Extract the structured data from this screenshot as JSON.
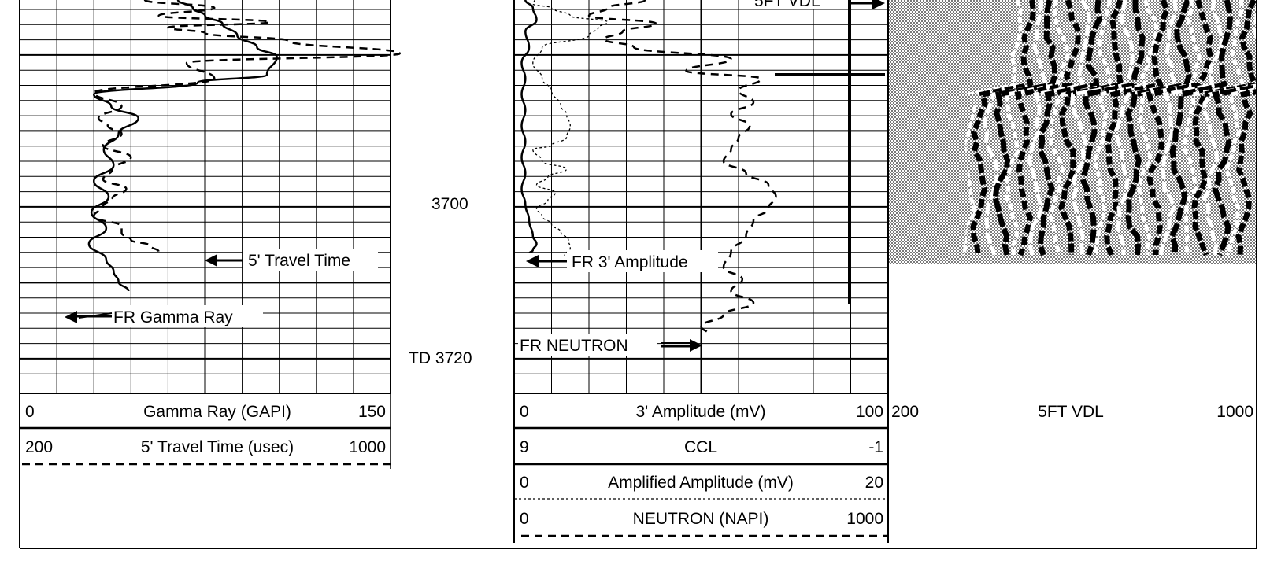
{
  "chart_data": {
    "type": "line",
    "title": "",
    "depth": {
      "label_3700": "3700",
      "label_td": "TD 3720",
      "td_value": 3720
    },
    "track1": {
      "headers": [
        {
          "left": "0",
          "name": "Gamma Ray (GAPI)",
          "right": "150",
          "line": "solid"
        },
        {
          "left": "200",
          "name": "5' Travel Time (usec)",
          "right": "1000",
          "line": "dashed"
        }
      ],
      "annotations": {
        "travel_time": "5' Travel Time",
        "gamma_ray": "FR Gamma Ray"
      },
      "series": [
        {
          "name": "Gamma Ray (GAPI)",
          "scale": [
            0,
            150
          ],
          "style": "solid",
          "x": [
            64,
            70,
            75,
            82,
            88,
            96,
            104,
            100,
            72,
            30,
            37,
            48,
            40,
            34,
            38,
            30,
            36,
            29,
            35,
            28,
            35,
            38,
            40,
            44
          ],
          "y": [
            0,
            10,
            20,
            30,
            45,
            60,
            72,
            95,
            105,
            120,
            135,
            150,
            170,
            190,
            210,
            230,
            250,
            270,
            290,
            310,
            330,
            345,
            358,
            370
          ]
        },
        {
          "name": "5' Travel Time (usec)",
          "scale": [
            200,
            1000
          ],
          "style": "dashed",
          "x": [
            470,
            620,
            500,
            740,
            520,
            600,
            780,
            1020,
            560,
            620,
            360,
            420,
            370,
            390,
            420,
            380,
            440,
            400,
            380,
            430,
            400,
            380,
            360,
            420,
            420,
            440,
            480,
            500
          ],
          "y": [
            0,
            10,
            20,
            28,
            35,
            42,
            52,
            68,
            80,
            100,
            118,
            135,
            150,
            160,
            170,
            185,
            200,
            215,
            228,
            240,
            252,
            262,
            275,
            288,
            296,
            305,
            312,
            320
          ]
        }
      ]
    },
    "track2": {
      "headers": [
        {
          "left": "0",
          "name": "3' Amplitude (mV)",
          "right": "100",
          "line": "solid"
        },
        {
          "left": "9",
          "name": "CCL",
          "right": "-1",
          "line": "solid"
        },
        {
          "left": "0",
          "name": "Amplified Amplitude (mV)",
          "right": "20",
          "line": "dotted"
        },
        {
          "left": "0",
          "name": "NEUTRON (NAPI)",
          "right": "1000",
          "line": "dashed"
        }
      ],
      "annotations": {
        "amplitude": "FR 3' Amplitude",
        "neutron": "FR NEUTRON",
        "vdl": "5FT VDL"
      },
      "series": [
        {
          "name": "3' Amplitude (mV)",
          "scale": [
            0,
            100
          ],
          "style": "solid",
          "x": [
            3,
            5,
            6,
            3,
            4,
            2,
            3,
            2,
            3,
            2,
            3,
            2,
            3,
            2,
            3,
            4,
            5,
            6,
            5,
            4
          ],
          "y": [
            0,
            10,
            25,
            40,
            60,
            80,
            100,
            120,
            140,
            160,
            180,
            200,
            220,
            240,
            260,
            280,
            300,
            310,
            318,
            322
          ]
        },
        {
          "name": "Amplified Amplitude (mV)",
          "scale": [
            0,
            20
          ],
          "style": "dotted",
          "x": [
            1.1,
            1.0,
            2.0,
            3.0,
            5.0,
            4.5,
            4.0,
            1.5,
            1.0,
            1.5,
            2.0,
            2.5,
            2.8,
            3.0,
            2.8,
            2.0,
            1.0,
            1.5,
            2.8,
            1.8,
            1.2,
            2.2,
            1.8,
            1.2,
            1.5,
            2.0,
            2.5,
            2.9,
            3.0,
            2.7
          ],
          "y": [
            0,
            5,
            10,
            20,
            28,
            35,
            45,
            60,
            80,
            100,
            115,
            135,
            145,
            160,
            175,
            185,
            190,
            205,
            215,
            225,
            235,
            245,
            255,
            265,
            275,
            285,
            295,
            305,
            315,
            325
          ]
        },
        {
          "name": "NEUTRON (NAPI)",
          "scale": [
            0,
            1000
          ],
          "style": "dashed",
          "x": [
            350,
            250,
            200,
            380,
            290,
            240,
            320,
            580,
            460,
            660,
            600,
            640,
            580,
            630,
            600,
            580,
            560,
            620,
            680,
            700,
            680,
            640,
            620,
            580,
            560,
            610,
            580,
            640,
            560,
            500,
            520
          ],
          "y": [
            0,
            10,
            20,
            30,
            40,
            50,
            60,
            75,
            90,
            100,
            115,
            130,
            145,
            160,
            175,
            190,
            205,
            220,
            235,
            250,
            265,
            280,
            300,
            320,
            340,
            355,
            370,
            385,
            400,
            415,
            425
          ]
        }
      ]
    },
    "track3": {
      "headers": [
        {
          "left": "200",
          "name": "5FT VDL",
          "right": "1000",
          "line": "none"
        }
      ]
    }
  }
}
